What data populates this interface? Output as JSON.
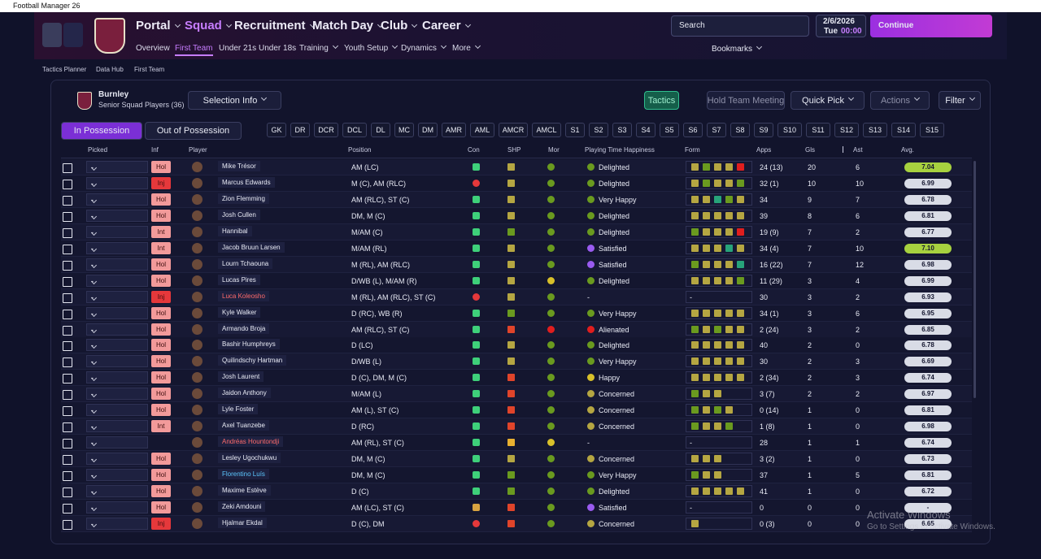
{
  "window_title": "Football Manager 26",
  "nav": {
    "main": [
      "Portal",
      "Squad",
      "Recruitment",
      "Match Day",
      "Club",
      "Career"
    ],
    "sub": [
      "Overview",
      "First Team",
      "Under 21s",
      "Under 18s",
      "Training",
      "Youth Setup",
      "Dynamics",
      "More"
    ],
    "search": "Search",
    "date": "2/6/2026",
    "day": "Tue",
    "time": "00:00",
    "continue": "Continue",
    "bookmarks": "Bookmarks"
  },
  "breadcrumbs": [
    "Tactics Planner",
    "Data Hub",
    "First Team"
  ],
  "club": {
    "name": "Burnley",
    "subtitle": "Senior Squad Players (36)"
  },
  "buttons": {
    "selection_info": "Selection Info",
    "tactics": "Tactics",
    "hold_team_meeting": "Hold Team Meeting",
    "quick_pick": "Quick Pick",
    "actions": "Actions",
    "filter": "Filter"
  },
  "tabs": [
    "In Possession",
    "Out of Possession"
  ],
  "positions": [
    "GK",
    "DR",
    "DCR",
    "DCL",
    "DL",
    "MC",
    "DM",
    "AMR",
    "AML",
    "AMCR",
    "AMCL",
    "S1",
    "S2",
    "S3",
    "S4",
    "S5",
    "S6",
    "S7",
    "S8",
    "S9",
    "S10",
    "S11",
    "S12",
    "S13",
    "S14",
    "S15"
  ],
  "table": {
    "columns": [
      "Picked",
      "Inf",
      "Player",
      "Position",
      "Con",
      "SHP",
      "Mor",
      "Playing Time Happiness",
      "Form",
      "Apps",
      "Gls",
      "Ast",
      "Avg."
    ],
    "rows": [
      {
        "picked": "-",
        "inf": "Hol",
        "player": "Mike Trésor",
        "position": "AM (LC)",
        "con": "heart",
        "shp": "o",
        "mor": "g",
        "happiness": "Delighted",
        "mood": "g",
        "form": [
          "o",
          "g",
          "o",
          "o",
          "r"
        ],
        "apps": "24 (13)",
        "gls": 20,
        "ast": 6,
        "avg": "7.04",
        "avg_highlight": true
      },
      {
        "picked": "-",
        "inf": "Inj",
        "player": "Marcus Edwards",
        "position": "M (C), AM (RLC)",
        "con": "injury",
        "shp": "o",
        "mor": "g",
        "happiness": "Delighted",
        "mood": "g",
        "form": [
          "o",
          "g",
          "o",
          "o",
          "g"
        ],
        "apps": "32 (1)",
        "gls": 10,
        "ast": 10,
        "avg": "6.99"
      },
      {
        "picked": "-",
        "inf": "Hol",
        "player": "Zion Flemming",
        "position": "AM (RLC), ST (C)",
        "con": "heart",
        "shp": "o",
        "mor": "g",
        "happiness": "Very Happy",
        "mood": "g",
        "form": [
          "o",
          "o",
          "t",
          "g",
          "o"
        ],
        "apps": "34",
        "gls": 9,
        "ast": 7,
        "avg": "6.78"
      },
      {
        "picked": "-",
        "inf": "Hol",
        "player": "Josh Cullen",
        "position": "DM, M (C)",
        "con": "heart",
        "shp": "o",
        "mor": "g",
        "happiness": "Delighted",
        "mood": "g",
        "form": [
          "o",
          "o",
          "o",
          "o",
          "o"
        ],
        "apps": "39",
        "gls": 8,
        "ast": 6,
        "avg": "6.81"
      },
      {
        "picked": "-",
        "inf": "Int",
        "player": "Hannibal",
        "position": "M/AM (C)",
        "con": "heart",
        "shp": "g",
        "mor": "g",
        "happiness": "Delighted",
        "mood": "g",
        "form": [
          "g",
          "o",
          "o",
          "o",
          "r"
        ],
        "apps": "19 (9)",
        "gls": 7,
        "ast": 2,
        "avg": "6.77"
      },
      {
        "picked": "-",
        "inf": "Int",
        "player": "Jacob Bruun Larsen",
        "position": "M/AM (RL)",
        "con": "heart",
        "shp": "o",
        "mor": "g",
        "happiness": "Satisfied",
        "mood": "p",
        "form": [
          "o",
          "o",
          "o",
          "t",
          "o"
        ],
        "apps": "34 (4)",
        "gls": 7,
        "ast": 10,
        "avg": "7.10",
        "avg_highlight": true
      },
      {
        "picked": "-",
        "inf": "Hol",
        "player": "Lourn Tchaouna",
        "position": "M (RL), AM (RLC)",
        "con": "heart",
        "shp": "o",
        "mor": "g",
        "happiness": "Satisfied",
        "mood": "p",
        "form": [
          "g",
          "o",
          "o",
          "o",
          "t"
        ],
        "apps": "16 (22)",
        "gls": 7,
        "ast": 12,
        "avg": "6.98"
      },
      {
        "picked": "-",
        "inf": "Hol",
        "player": "Lucas Pires",
        "position": "D/WB (L), M/AM (R)",
        "con": "heart",
        "shp": "o",
        "mor": "y",
        "happiness": "Delighted",
        "mood": "g",
        "form": [
          "o",
          "o",
          "o",
          "o",
          "g"
        ],
        "apps": "11 (29)",
        "gls": 3,
        "ast": 4,
        "avg": "6.99"
      },
      {
        "picked": "-",
        "inf": "Inj",
        "player": "Luca Koleosho",
        "name_color": "#ff6b6b",
        "position": "M (RL), AM (RLC), ST (C)",
        "con": "injury",
        "shp": "o",
        "mor": "g",
        "happiness": "-",
        "form": "-",
        "apps": "30",
        "gls": 3,
        "ast": 2,
        "avg": "6.93"
      },
      {
        "picked": "-",
        "inf": "Hol",
        "player": "Kyle Walker",
        "position": "D (RC), WB (R)",
        "con": "heart",
        "shp": "g",
        "mor": "g",
        "happiness": "Very Happy",
        "mood": "g",
        "form": [
          "o",
          "o",
          "o",
          "o",
          "o"
        ],
        "apps": "34 (1)",
        "gls": 3,
        "ast": 6,
        "avg": "6.95"
      },
      {
        "picked": "-",
        "inf": "Hol",
        "player": "Armando Broja",
        "position": "AM (RLC), ST (C)",
        "con": "heart",
        "shp": "x",
        "mor": "r",
        "happiness": "Alienated",
        "mood": "r",
        "form": [
          "g",
          "o",
          "g",
          "o",
          "o"
        ],
        "apps": "2 (24)",
        "gls": 3,
        "ast": 2,
        "avg": "6.85"
      },
      {
        "picked": "-",
        "inf": "Hol",
        "player": "Bashir Humphreys",
        "position": "D (LC)",
        "con": "heart",
        "shp": "o",
        "mor": "g",
        "happiness": "Delighted",
        "mood": "g",
        "form": [
          "o",
          "o",
          "o",
          "o",
          "o"
        ],
        "apps": "40",
        "gls": 2,
        "ast": 0,
        "avg": "6.78"
      },
      {
        "picked": "-",
        "inf": "Hol",
        "player": "Quilindschy Hartman",
        "position": "D/WB (L)",
        "con": "heart",
        "shp": "o",
        "mor": "g",
        "happiness": "Very Happy",
        "mood": "g",
        "form": [
          "o",
          "o",
          "o",
          "o",
          "o"
        ],
        "apps": "30",
        "gls": 2,
        "ast": 3,
        "avg": "6.69"
      },
      {
        "picked": "-",
        "inf": "Hol",
        "player": "Josh Laurent",
        "position": "D (C), DM, M (C)",
        "con": "heart",
        "shp": "x",
        "mor": "g",
        "happiness": "Happy",
        "mood": "y",
        "form": [
          "o",
          "o",
          "o",
          "o",
          "o"
        ],
        "apps": "2 (34)",
        "gls": 2,
        "ast": 3,
        "avg": "6.74"
      },
      {
        "picked": "-",
        "inf": "Hol",
        "player": "Jaidon Anthony",
        "position": "M/AM (L)",
        "con": "heart",
        "shp": "x",
        "mor": "g",
        "happiness": "Concerned",
        "mood": "o",
        "form": [
          "g",
          "o",
          "o"
        ],
        "apps": "3 (7)",
        "gls": 2,
        "ast": 2,
        "avg": "6.97"
      },
      {
        "picked": "-",
        "inf": "Hol",
        "player": "Lyle Foster",
        "position": "AM (L), ST (C)",
        "con": "heart",
        "shp": "x",
        "mor": "g",
        "happiness": "Concerned",
        "mood": "o",
        "form": [
          "g",
          "o",
          "g",
          "o"
        ],
        "apps": "0 (14)",
        "gls": 1,
        "ast": 0,
        "avg": "6.81"
      },
      {
        "picked": "-",
        "inf": "Int",
        "player": "Axel Tuanzebe",
        "position": "D (RC)",
        "con": "heart",
        "shp": "x",
        "mor": "g",
        "happiness": "Concerned",
        "mood": "o",
        "form": [
          "g",
          "o",
          "o",
          "g"
        ],
        "apps": "1 (8)",
        "gls": 1,
        "ast": 0,
        "avg": "6.98"
      },
      {
        "picked": "-",
        "inf": null,
        "player": "Andréas Hountondji",
        "name_color": "#ff6b6b",
        "position": "AM (RL), ST (C)",
        "con": "heart",
        "shp": "m",
        "mor": "y",
        "happiness": "-",
        "form": "-",
        "apps": "28",
        "gls": 1,
        "ast": 1,
        "avg": "6.74"
      },
      {
        "picked": "-",
        "inf": "Hol",
        "player": "Lesley Ugochukwu",
        "position": "DM, M (C)",
        "con": "heart",
        "shp": "o",
        "mor": "g",
        "happiness": "Concerned",
        "mood": "o",
        "form": [
          "o",
          "o",
          "o"
        ],
        "apps": "3 (2)",
        "gls": 1,
        "ast": 0,
        "avg": "6.73"
      },
      {
        "picked": "-",
        "inf": "Hol",
        "player": "Florentino Luís",
        "name_color": "#5cc8ff",
        "position": "DM, M (C)",
        "con": "heart",
        "shp": "g",
        "mor": "g",
        "happiness": "Very Happy",
        "mood": "g",
        "form": [
          "g",
          "o",
          "o"
        ],
        "apps": "37",
        "gls": 1,
        "ast": 5,
        "avg": "6.81"
      },
      {
        "picked": "-",
        "inf": "Hol",
        "player": "Maxime Estève",
        "position": "D (C)",
        "con": "heart",
        "shp": "g",
        "mor": "g",
        "happiness": "Delighted",
        "mood": "g",
        "form": [
          "o",
          "o",
          "o",
          "o",
          "o"
        ],
        "apps": "41",
        "gls": 1,
        "ast": 0,
        "avg": "6.72"
      },
      {
        "picked": "-",
        "inf": "Hol",
        "player": "Zeki Amdouni",
        "position": "AM (LC), ST (C)",
        "con": "heartw",
        "shp": "x",
        "mor": "g",
        "happiness": "Satisfied",
        "mood": "p",
        "form": "-",
        "apps": "0",
        "gls": 0,
        "ast": 0,
        "avg": "-"
      },
      {
        "picked": "-",
        "inf": "Inj",
        "player": "Hjalmar Ekdal",
        "position": "D (C), DM",
        "con": "injury",
        "shp": "x",
        "mor": "g",
        "happiness": "Concerned",
        "mood": "o",
        "form": [
          "o"
        ],
        "apps": "0 (3)",
        "gls": 0,
        "ast": 0,
        "avg": "6.65"
      }
    ]
  },
  "watermark": {
    "title": "Activate Windows",
    "text": "Go to Settings to activate Windows."
  }
}
